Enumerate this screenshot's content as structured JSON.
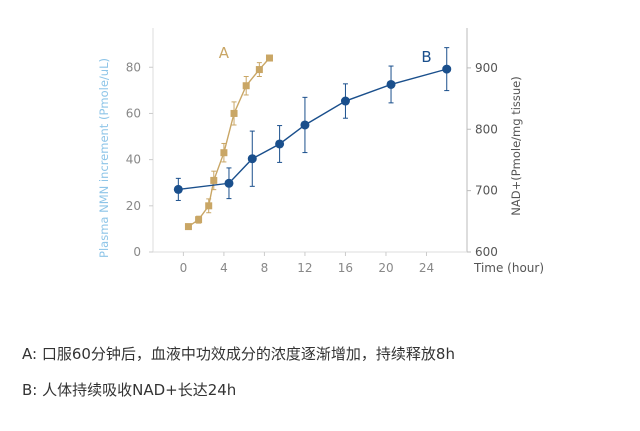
{
  "chart_data": {
    "type": "line",
    "x_label": "Time (hour)",
    "x_ticks": [
      0,
      4,
      8,
      12,
      16,
      20,
      24
    ],
    "xlim": [
      -3,
      28
    ],
    "y_left_label": "Plasma NMN increment (Pmole/uL)",
    "y_left_ticks": [
      0,
      20,
      40,
      60,
      80
    ],
    "y_left_lim": [
      0,
      97
    ],
    "y_right_label": "NAD+(Pmole/mg tissue)",
    "y_right_ticks": [
      600,
      700,
      800,
      900
    ],
    "y_right_lim": [
      600,
      965
    ],
    "colors": {
      "left_axis": "#8ec5e8",
      "right_axis": "#555555",
      "tick": "#888888"
    },
    "series": [
      {
        "name": "A",
        "axis": "left",
        "color": "#c9a665",
        "marker": "square",
        "x": [
          0.5,
          1.5,
          2.5,
          3,
          4,
          5,
          6.2,
          7.5,
          8.5
        ],
        "y": [
          11,
          14,
          20,
          31,
          43,
          60,
          72,
          79,
          84
        ],
        "err": [
          0.5,
          1.5,
          3,
          4,
          4,
          5,
          4,
          3,
          0.5
        ]
      },
      {
        "name": "B",
        "axis": "right",
        "color": "#1a4f8c",
        "marker": "circle",
        "x": [
          -0.5,
          4.5,
          6.8,
          9.5,
          12,
          16,
          20.5,
          26
        ],
        "y": [
          702,
          712,
          752,
          776,
          807,
          846,
          873,
          898
        ],
        "err": [
          18,
          25,
          45,
          30,
          45,
          28,
          30,
          35
        ]
      }
    ]
  },
  "captions": {
    "a": "A: 口服60分钟后，血液中功效成分的浓度逐渐增加，持续释放8h",
    "b": "B: 人体持续吸收NAD+长达24h"
  }
}
